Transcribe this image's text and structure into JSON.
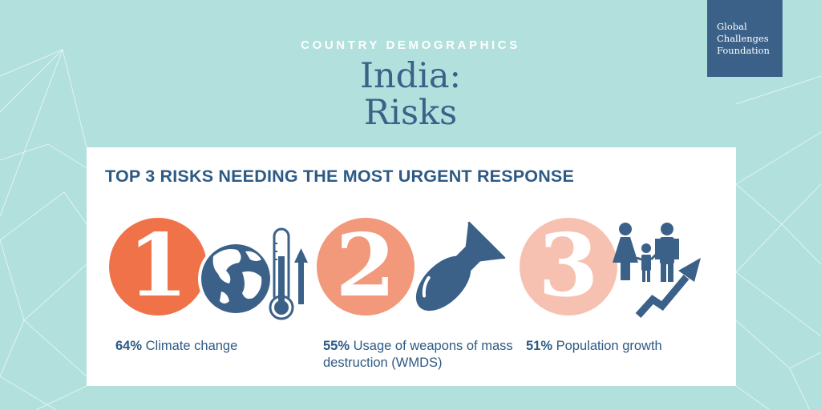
{
  "header": {
    "kicker": "COUNTRY DEMOGRAPHICS",
    "title_line1": "India:",
    "title_line2": "Risks"
  },
  "logo": {
    "line1": "Global",
    "line2": "Challenges",
    "line3": "Foundation"
  },
  "card": {
    "heading": "TOP 3 RISKS NEEDING THE MOST URGENT RESPONSE"
  },
  "risks": [
    {
      "rank": "1",
      "percent": "64%",
      "label": "Climate change",
      "icon": "globe-thermometer-icon",
      "badge_color": "#f07249"
    },
    {
      "rank": "2",
      "percent": "55%",
      "label": "Usage of weapons of mass destruction (WMDS)",
      "icon": "bomb-icon",
      "badge_color": "#f2987b"
    },
    {
      "rank": "3",
      "percent": "51%",
      "label": "Population growth",
      "icon": "family-growth-icon",
      "badge_color": "#f7c1b1"
    }
  ],
  "colors": {
    "background": "#b2e0dd",
    "primary_blue": "#3b6189",
    "text_blue": "#2d5a84"
  }
}
